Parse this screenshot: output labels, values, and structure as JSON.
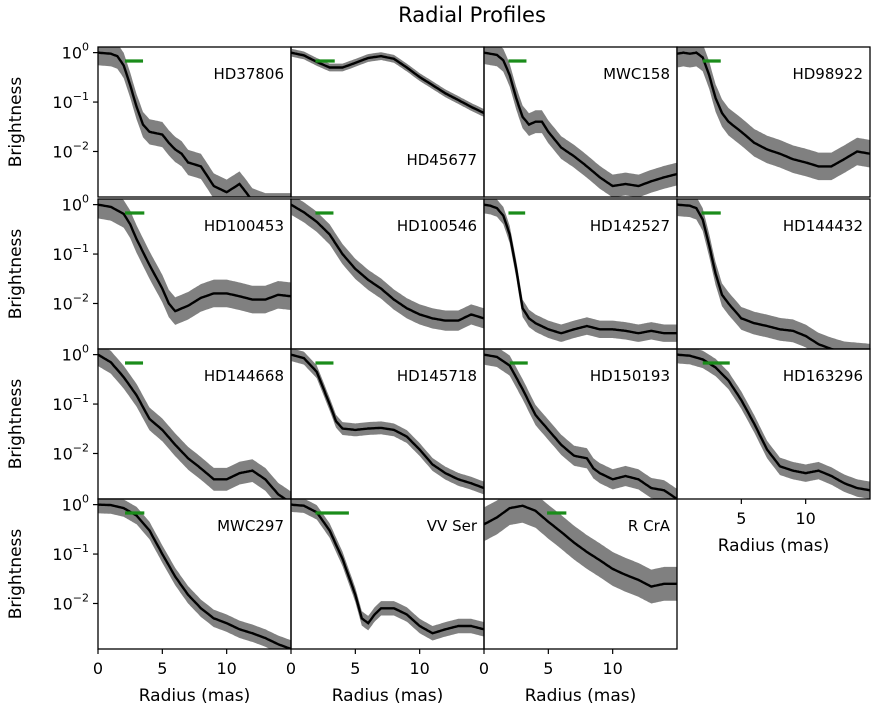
{
  "chart_data": {
    "type": "line",
    "title": "Radial Profiles",
    "xlabel": "Radius (mas)",
    "ylabel": "Brightness",
    "yscale": "log",
    "xlim": [
      0,
      15
    ],
    "ylim": [
      0.0012,
      1.3
    ],
    "x_ticks": [
      0,
      5,
      10
    ],
    "y_ticks": [
      {
        "base": "10",
        "exp": "0",
        "value": 1
      },
      {
        "base": "10",
        "exp": "−1",
        "value": 0.1
      },
      {
        "base": "10",
        "exp": "−2",
        "value": 0.01
      }
    ],
    "colors": {
      "line": "#000000",
      "band": "#808080",
      "beam": "#1a8c1a"
    },
    "panels": [
      {
        "name": "HD37806",
        "label_pos": "top-right",
        "beam": [
          2.1,
          3.5
        ],
        "profile": [
          [
            0,
            1.0
          ],
          [
            1,
            0.95
          ],
          [
            1.5,
            0.85
          ],
          [
            2,
            0.55
          ],
          [
            2.5,
            0.22
          ],
          [
            3,
            0.08
          ],
          [
            3.5,
            0.035
          ],
          [
            4,
            0.025
          ],
          [
            5,
            0.022
          ],
          [
            5.5,
            0.015
          ],
          [
            6,
            0.011
          ],
          [
            6.5,
            0.009
          ],
          [
            7,
            0.006
          ],
          [
            8,
            0.005
          ],
          [
            9,
            0.002
          ],
          [
            10,
            0.0015
          ],
          [
            11,
            0.0022
          ],
          [
            11.5,
            0.0015
          ],
          [
            12,
            0.001
          ],
          [
            13,
            0.0008
          ],
          [
            15,
            0.0008
          ]
        ],
        "band_factor": 1.8
      },
      {
        "name": "HD45677",
        "label_pos": "bottom-right",
        "beam": [
          1.9,
          3.4
        ],
        "profile": [
          [
            0,
            1.0
          ],
          [
            1,
            0.88
          ],
          [
            2,
            0.65
          ],
          [
            3,
            0.5
          ],
          [
            4,
            0.5
          ],
          [
            5,
            0.62
          ],
          [
            6,
            0.78
          ],
          [
            7,
            0.85
          ],
          [
            8,
            0.75
          ],
          [
            9,
            0.5
          ],
          [
            10,
            0.32
          ],
          [
            11,
            0.22
          ],
          [
            12,
            0.15
          ],
          [
            13,
            0.11
          ],
          [
            14,
            0.08
          ],
          [
            15,
            0.06
          ]
        ],
        "band_factor": 1.2
      },
      {
        "name": "MWC158",
        "label_pos": "top-right",
        "beam": [
          1.9,
          3.3
        ],
        "profile": [
          [
            0,
            1.0
          ],
          [
            1,
            0.9
          ],
          [
            1.5,
            0.7
          ],
          [
            2,
            0.35
          ],
          [
            2.5,
            0.12
          ],
          [
            3,
            0.05
          ],
          [
            3.5,
            0.035
          ],
          [
            4,
            0.04
          ],
          [
            4.5,
            0.04
          ],
          [
            5,
            0.025
          ],
          [
            6,
            0.012
          ],
          [
            7,
            0.008
          ],
          [
            8,
            0.005
          ],
          [
            9,
            0.003
          ],
          [
            10,
            0.002
          ],
          [
            11,
            0.0022
          ],
          [
            12,
            0.002
          ],
          [
            13,
            0.0025
          ],
          [
            14,
            0.003
          ],
          [
            15,
            0.0035
          ]
        ],
        "band_factor": 1.7
      },
      {
        "name": "HD98922",
        "label_pos": "top-right",
        "beam": [
          2.0,
          3.4
        ],
        "profile": [
          [
            0,
            0.95
          ],
          [
            0.5,
            1.0
          ],
          [
            1,
            0.95
          ],
          [
            1.5,
            1.0
          ],
          [
            2,
            0.8
          ],
          [
            2.5,
            0.35
          ],
          [
            3,
            0.12
          ],
          [
            3.5,
            0.06
          ],
          [
            4,
            0.04
          ],
          [
            5,
            0.025
          ],
          [
            6,
            0.015
          ],
          [
            7,
            0.011
          ],
          [
            8,
            0.009
          ],
          [
            9,
            0.007
          ],
          [
            10,
            0.006
          ],
          [
            11,
            0.005
          ],
          [
            12,
            0.005
          ],
          [
            13,
            0.007
          ],
          [
            14,
            0.01
          ],
          [
            15,
            0.009
          ]
        ],
        "band_factor": 1.9
      },
      {
        "name": "HD100453",
        "label_pos": "top-right",
        "beam": [
          2.1,
          3.6
        ],
        "profile": [
          [
            0,
            1.0
          ],
          [
            1,
            0.9
          ],
          [
            2,
            0.65
          ],
          [
            2.5,
            0.4
          ],
          [
            3,
            0.2
          ],
          [
            4,
            0.06
          ],
          [
            5,
            0.02
          ],
          [
            5.5,
            0.01
          ],
          [
            6,
            0.007
          ],
          [
            7,
            0.009
          ],
          [
            8,
            0.013
          ],
          [
            9,
            0.016
          ],
          [
            10,
            0.016
          ],
          [
            11,
            0.014
          ],
          [
            12,
            0.012
          ],
          [
            13,
            0.012
          ],
          [
            14,
            0.015
          ],
          [
            15,
            0.014
          ]
        ],
        "band_factor": 1.9
      },
      {
        "name": "HD100546",
        "label_pos": "top-right",
        "beam": [
          1.9,
          3.3
        ],
        "profile": [
          [
            0,
            1.0
          ],
          [
            1,
            0.7
          ],
          [
            2,
            0.45
          ],
          [
            3,
            0.25
          ],
          [
            4,
            0.1
          ],
          [
            5,
            0.05
          ],
          [
            6,
            0.03
          ],
          [
            7,
            0.02
          ],
          [
            8,
            0.012
          ],
          [
            9,
            0.008
          ],
          [
            10,
            0.006
          ],
          [
            11,
            0.005
          ],
          [
            12,
            0.0045
          ],
          [
            13,
            0.0045
          ],
          [
            14,
            0.006
          ],
          [
            15,
            0.005
          ]
        ],
        "band_factor": 1.6
      },
      {
        "name": "HD142527",
        "label_pos": "top-right",
        "beam": [
          1.9,
          3.2
        ],
        "profile": [
          [
            0,
            1.0
          ],
          [
            0.5,
            0.95
          ],
          [
            1,
            0.85
          ],
          [
            1.5,
            0.6
          ],
          [
            2,
            0.25
          ],
          [
            2.5,
            0.05
          ],
          [
            3,
            0.008
          ],
          [
            3.5,
            0.005
          ],
          [
            4,
            0.004
          ],
          [
            5,
            0.003
          ],
          [
            6,
            0.0025
          ],
          [
            7,
            0.003
          ],
          [
            8,
            0.0035
          ],
          [
            9,
            0.003
          ],
          [
            10,
            0.003
          ],
          [
            11,
            0.0028
          ],
          [
            12,
            0.0025
          ],
          [
            13,
            0.0028
          ],
          [
            14,
            0.0025
          ],
          [
            15,
            0.0025
          ]
        ],
        "band_factor": 1.5
      },
      {
        "name": "HD144432",
        "label_pos": "top-right",
        "beam": [
          1.9,
          3.4
        ],
        "profile": [
          [
            0,
            1.0
          ],
          [
            1,
            0.95
          ],
          [
            1.5,
            0.85
          ],
          [
            2,
            0.5
          ],
          [
            2.5,
            0.15
          ],
          [
            3,
            0.04
          ],
          [
            3.5,
            0.015
          ],
          [
            4,
            0.01
          ],
          [
            5,
            0.005
          ],
          [
            6,
            0.004
          ],
          [
            7,
            0.0035
          ],
          [
            8,
            0.003
          ],
          [
            9,
            0.0028
          ],
          [
            10,
            0.0022
          ],
          [
            11,
            0.0015
          ],
          [
            12,
            0.0012
          ],
          [
            13,
            0.001
          ],
          [
            15,
            0.0009
          ]
        ],
        "band_factor": 1.7
      },
      {
        "name": "HD144668",
        "label_pos": "top-right",
        "beam": [
          2.1,
          3.5
        ],
        "profile": [
          [
            0,
            1.0
          ],
          [
            1,
            0.7
          ],
          [
            2,
            0.35
          ],
          [
            3,
            0.15
          ],
          [
            4,
            0.05
          ],
          [
            5,
            0.03
          ],
          [
            6,
            0.015
          ],
          [
            7,
            0.008
          ],
          [
            8,
            0.005
          ],
          [
            9,
            0.003
          ],
          [
            10,
            0.003
          ],
          [
            11,
            0.004
          ],
          [
            12,
            0.0045
          ],
          [
            13,
            0.003
          ],
          [
            14,
            0.0015
          ],
          [
            15,
            0.001
          ]
        ],
        "band_factor": 1.7
      },
      {
        "name": "HD145718",
        "label_pos": "top-right",
        "beam": [
          1.9,
          3.3
        ],
        "profile": [
          [
            0,
            1.0
          ],
          [
            1,
            0.85
          ],
          [
            2,
            0.45
          ],
          [
            3,
            0.1
          ],
          [
            3.5,
            0.045
          ],
          [
            4,
            0.032
          ],
          [
            5,
            0.03
          ],
          [
            6,
            0.032
          ],
          [
            7,
            0.033
          ],
          [
            8,
            0.03
          ],
          [
            9,
            0.022
          ],
          [
            10,
            0.012
          ],
          [
            11,
            0.006
          ],
          [
            12,
            0.004
          ],
          [
            13,
            0.003
          ],
          [
            14,
            0.0025
          ],
          [
            15,
            0.002
          ]
        ],
        "band_factor": 1.35
      },
      {
        "name": "HD150193",
        "label_pos": "top-right",
        "beam": [
          2.0,
          3.4
        ],
        "profile": [
          [
            0,
            1.0
          ],
          [
            1,
            0.9
          ],
          [
            2,
            0.6
          ],
          [
            3,
            0.2
          ],
          [
            4,
            0.06
          ],
          [
            5,
            0.03
          ],
          [
            6,
            0.015
          ],
          [
            7,
            0.009
          ],
          [
            8,
            0.008
          ],
          [
            8.5,
            0.005
          ],
          [
            9,
            0.004
          ],
          [
            10,
            0.003
          ],
          [
            11,
            0.0035
          ],
          [
            12,
            0.003
          ],
          [
            13,
            0.002
          ],
          [
            14,
            0.0018
          ],
          [
            15,
            0.0012
          ]
        ],
        "band_factor": 1.6
      },
      {
        "name": "HD163296",
        "label_pos": "top-right",
        "beam": [
          2.0,
          4.1
        ],
        "profile": [
          [
            0,
            1.0
          ],
          [
            1,
            0.95
          ],
          [
            2,
            0.8
          ],
          [
            3,
            0.55
          ],
          [
            4,
            0.3
          ],
          [
            5,
            0.12
          ],
          [
            6,
            0.04
          ],
          [
            7,
            0.012
          ],
          [
            8,
            0.0055
          ],
          [
            9,
            0.0045
          ],
          [
            10,
            0.004
          ],
          [
            11,
            0.0045
          ],
          [
            12,
            0.0035
          ],
          [
            13,
            0.0025
          ],
          [
            14,
            0.002
          ],
          [
            15,
            0.0018
          ]
        ],
        "band_factor": 1.5
      },
      {
        "name": "MWC297",
        "label_pos": "top-right",
        "beam": [
          2.1,
          3.6
        ],
        "profile": [
          [
            0,
            1.0
          ],
          [
            1,
            0.98
          ],
          [
            2,
            0.85
          ],
          [
            3,
            0.6
          ],
          [
            4,
            0.3
          ],
          [
            5,
            0.1
          ],
          [
            6,
            0.035
          ],
          [
            7,
            0.015
          ],
          [
            8,
            0.008
          ],
          [
            9,
            0.005
          ],
          [
            10,
            0.004
          ],
          [
            11,
            0.003
          ],
          [
            12,
            0.0025
          ],
          [
            13,
            0.002
          ],
          [
            14,
            0.0015
          ],
          [
            15,
            0.0012
          ]
        ],
        "band_factor": 1.5
      },
      {
        "name": "VV Ser",
        "label_pos": "top-right",
        "beam": [
          1.9,
          4.5
        ],
        "profile": [
          [
            0,
            1.0
          ],
          [
            1,
            0.95
          ],
          [
            2,
            0.7
          ],
          [
            3,
            0.3
          ],
          [
            4,
            0.08
          ],
          [
            5,
            0.015
          ],
          [
            5.5,
            0.005
          ],
          [
            6,
            0.004
          ],
          [
            6.5,
            0.006
          ],
          [
            7,
            0.008
          ],
          [
            8,
            0.008
          ],
          [
            9,
            0.006
          ],
          [
            10,
            0.0035
          ],
          [
            11,
            0.0025
          ],
          [
            12,
            0.003
          ],
          [
            13,
            0.0035
          ],
          [
            14,
            0.0035
          ],
          [
            15,
            0.003
          ]
        ],
        "band_factor": 1.4
      },
      {
        "name": "R CrA",
        "label_pos": "top-right",
        "beam": [
          4.9,
          6.4
        ],
        "profile": [
          [
            0,
            0.4
          ],
          [
            1,
            0.55
          ],
          [
            2,
            0.85
          ],
          [
            3,
            0.95
          ],
          [
            4,
            0.75
          ],
          [
            5,
            0.45
          ],
          [
            6,
            0.28
          ],
          [
            7,
            0.17
          ],
          [
            8,
            0.11
          ],
          [
            9,
            0.075
          ],
          [
            10,
            0.05
          ],
          [
            11,
            0.038
          ],
          [
            12,
            0.03
          ],
          [
            13,
            0.022
          ],
          [
            14,
            0.025
          ],
          [
            15,
            0.025
          ]
        ],
        "band_factor": 2.2
      }
    ]
  }
}
